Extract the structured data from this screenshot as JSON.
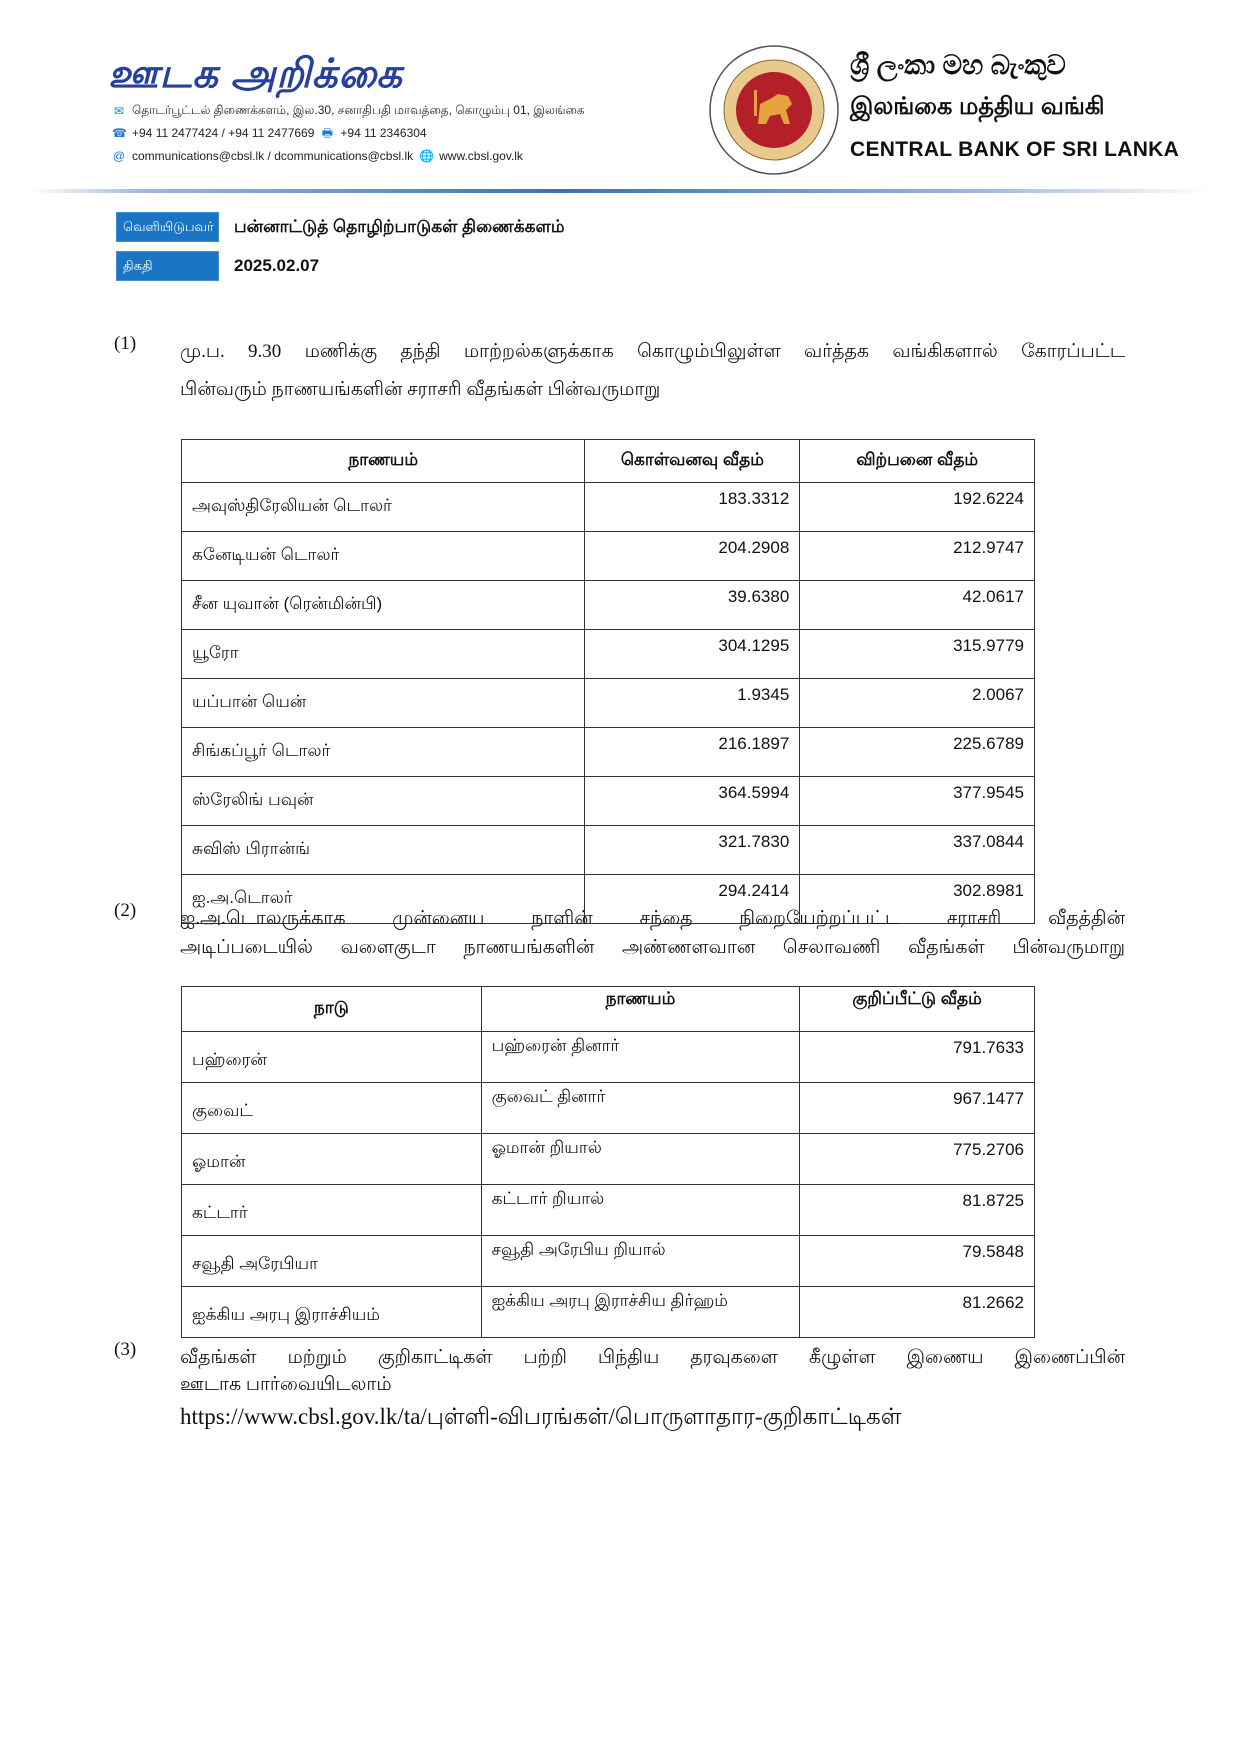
{
  "header": {
    "title": "ஊடக அறிக்கை",
    "address": "தொடர்பூட்டல் திணைக்களம், இல.30, சனாதிபதி மாவத்தை, கொழும்பு 01, இலங்கை",
    "phone": "+94 11 2477424 / +94 11 2477669",
    "fax": "+94 11  2346304",
    "email": "communications@cbsl.lk / dcommunications@cbsl.lk",
    "website": "www.cbsl.gov.lk",
    "bank_name_sinhala": "ශ්‍රී ලංකා මහ බැංකුව",
    "bank_name_tamil": "இலங்கை மத்திய வங்கி",
    "bank_name_english": "CENTRAL BANK OF SRI LANKA",
    "seal_text": "CENTRAL BANK OF SRI LANKA",
    "colors": {
      "brand": "#27409a",
      "badge": "#1a75c4",
      "seal_red": "#b3202a",
      "seal_gold": "#e6a23c"
    }
  },
  "meta": {
    "issuer_label": "வெளியிடுபவர்",
    "issuer_value": "பன்னாட்டுத் தொழிற்பாடுகள்  திணைக்களம்",
    "date_label": "திகதி",
    "date_value": "2025.02.07"
  },
  "section1": {
    "number": "(1)",
    "text": "மு.ப. 9.30 மணிக்கு தந்தி மாற்றல்களுக்காக கொழும்பிலுள்ள வர்த்தக வங்கிகளால் கோரப்பட்ட",
    "text2": "பின்வரும் நாணயங்களின் சராசரி வீதங்கள் பின்வருமாறு",
    "headers": [
      "நாணயம்",
      "கொள்வனவு வீதம்",
      "விற்பனை வீதம்"
    ],
    "rows": [
      [
        "அவுஸ்திரேலியன் டொலர்",
        "183.3312",
        "192.6224"
      ],
      [
        "கனேடியன் டொலர்",
        "204.2908",
        "212.9747"
      ],
      [
        "சீன யுவான் (ரென்மின்பி)",
        "39.6380",
        "42.0617"
      ],
      [
        "யூரோ",
        "304.1295",
        "315.9779"
      ],
      [
        "யப்பான் யென்",
        "1.9345",
        "2.0067"
      ],
      [
        "சிங்கப்பூர் டொலர்",
        "216.1897",
        "225.6789"
      ],
      [
        "ஸ்ரேலிங் பவுன்",
        "364.5994",
        "377.9545"
      ],
      [
        "சுவிஸ் பிரான்ங்",
        "321.7830",
        "337.0844"
      ],
      [
        "ஐ.அ.டொலர்",
        "294.2414",
        "302.8981"
      ]
    ]
  },
  "section2": {
    "number": "(2)",
    "text": "ஐ.அ.டொலருக்காக முன்னைய நாளின் சந்தை நிறையேற்றப்பட்ட சராசரி வீதத்தின்",
    "text2": "அடிப்படையில் வளைகுடா நாணயங்களின் அண்ணளவான செலாவணி வீதங்கள் பின்வருமாறு",
    "headers": [
      "நாடு",
      "நாணயம்",
      "குறிப்பீட்டு வீதம்"
    ],
    "rows": [
      [
        "பஹ்ரைன்",
        "பஹ்ரைன் தினார்",
        "791.7633"
      ],
      [
        "குவைட்",
        "குவைட் தினார்",
        "967.1477"
      ],
      [
        "ஓமான்",
        "ஓமான் றியால்",
        "775.2706"
      ],
      [
        "கட்டார்",
        "கட்டார் றியால்",
        "81.8725"
      ],
      [
        "சவூதி அரேபியா",
        "சவூதி அரேபிய றியால்",
        "79.5848"
      ],
      [
        "ஐக்கிய அரபு இராச்சியம்",
        "ஐக்கிய அரபு இராச்சிய திர்ஹம்",
        "81.2662"
      ]
    ]
  },
  "section3": {
    "number": "(3)",
    "text": "வீதங்கள் மற்றும் குறிகாட்டிகள் பற்றி பிந்திய தரவுகளை கீழுள்ள இணைய இணைப்பின்",
    "text2": "ஊடாக பார்வையிடலாம்",
    "url": "https://www.cbsl.gov.lk/ta/புள்ளி-விபரங்கள்/பொருளாதார-குறிகாட்டிகள்"
  }
}
